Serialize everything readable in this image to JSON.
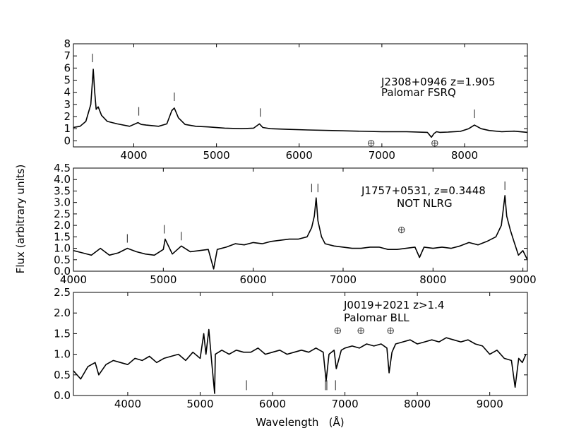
{
  "figure": {
    "ylabel": "Flux (arbitrary units)",
    "xlabel": "Wavelength   (Å)"
  },
  "chart_data": [
    {
      "type": "line",
      "series": [
        {
          "name": "J2308+0946",
          "x": [
            3270,
            3350,
            3420,
            3480,
            3510,
            3525,
            3545,
            3570,
            3610,
            3680,
            3800,
            3950,
            4050,
            4090,
            4150,
            4300,
            4400,
            4460,
            4490,
            4540,
            4620,
            4750,
            4900,
            5100,
            5300,
            5450,
            5520,
            5560,
            5650,
            5850,
            6100,
            6400,
            6700,
            7000,
            7300,
            7550,
            7600,
            7630,
            7660,
            7700,
            7800,
            7950,
            8050,
            8120,
            8200,
            8300,
            8450,
            8600,
            8760
          ],
          "y": [
            1.1,
            1.2,
            1.6,
            3.0,
            5.9,
            4.2,
            2.6,
            2.8,
            2.1,
            1.6,
            1.4,
            1.2,
            1.5,
            1.35,
            1.3,
            1.2,
            1.4,
            2.5,
            2.7,
            1.9,
            1.35,
            1.2,
            1.15,
            1.05,
            1.0,
            1.05,
            1.4,
            1.1,
            1.0,
            0.95,
            0.9,
            0.85,
            0.8,
            0.75,
            0.75,
            0.7,
            0.3,
            0.6,
            0.75,
            0.7,
            0.72,
            0.78,
            1.0,
            1.3,
            1.0,
            0.85,
            0.75,
            0.8,
            0.7
          ]
        }
      ],
      "line_markers_x": [
        3500,
        4060,
        4490,
        5530,
        8120
      ],
      "telluric_x": [
        6870,
        7640
      ],
      "annotations": [
        "J2308+0946 z=1.905",
        "Palomar FSRQ"
      ],
      "xlim": [
        3270,
        8760
      ],
      "ylim": [
        -0.5,
        8
      ],
      "x_ticks": [
        4000,
        5000,
        6000,
        7000,
        8000
      ],
      "y_ticks": [
        0,
        1,
        2,
        3,
        4,
        5,
        6,
        7,
        8
      ]
    },
    {
      "type": "line",
      "series": [
        {
          "name": "J1757+0531",
          "x": [
            4000,
            4100,
            4200,
            4300,
            4400,
            4500,
            4600,
            4700,
            4800,
            4900,
            5000,
            5020,
            5100,
            5200,
            5300,
            5400,
            5500,
            5560,
            5600,
            5700,
            5800,
            5900,
            6000,
            6100,
            6200,
            6300,
            6400,
            6500,
            6600,
            6650,
            6680,
            6700,
            6720,
            6760,
            6800,
            6900,
            7000,
            7100,
            7200,
            7300,
            7400,
            7500,
            7600,
            7700,
            7800,
            7850,
            7900,
            8000,
            8100,
            8200,
            8300,
            8400,
            8500,
            8600,
            8700,
            8760,
            8800,
            8820,
            8860,
            8900,
            8950,
            9000,
            9050
          ],
          "y": [
            0.9,
            0.8,
            0.7,
            1.0,
            0.7,
            0.8,
            1.0,
            0.85,
            0.75,
            0.7,
            0.95,
            1.4,
            0.75,
            1.1,
            0.85,
            0.9,
            0.95,
            0.1,
            0.95,
            1.05,
            1.2,
            1.15,
            1.25,
            1.2,
            1.3,
            1.35,
            1.4,
            1.4,
            1.5,
            1.9,
            2.4,
            3.2,
            2.2,
            1.5,
            1.2,
            1.1,
            1.05,
            1.0,
            1.0,
            1.05,
            1.05,
            0.95,
            0.95,
            1.0,
            1.05,
            0.6,
            1.05,
            1.0,
            1.05,
            1.0,
            1.1,
            1.25,
            1.15,
            1.3,
            1.5,
            2.0,
            3.3,
            2.4,
            1.8,
            1.3,
            0.7,
            0.9,
            0.5
          ]
        }
      ],
      "line_markers_x": [
        4600,
        5010,
        5200,
        6650,
        6720,
        8800
      ],
      "telluric_x": [
        7650
      ],
      "annotations": [
        "J1757+0531, z=0.3448",
        "NOT NLRG"
      ],
      "xlim": [
        4000,
        9050
      ],
      "ylim": [
        0,
        4.5
      ],
      "x_ticks": [
        4000,
        5000,
        6000,
        7000,
        8000,
        9000
      ],
      "y_ticks": [
        0.0,
        0.5,
        1.0,
        1.5,
        2.0,
        2.5,
        3.0,
        3.5,
        4.0,
        4.5
      ],
      "y_tick_labels": [
        "0.0",
        "0.5",
        "1.0",
        "1.5",
        "2.0",
        "2.5",
        "3.0",
        "3.5",
        "4.0",
        "4.5"
      ]
    },
    {
      "type": "line",
      "series": [
        {
          "name": "J0019+2021",
          "x": [
            3250,
            3350,
            3450,
            3550,
            3600,
            3700,
            3800,
            3900,
            4000,
            4100,
            4200,
            4300,
            4400,
            4500,
            4600,
            4700,
            4800,
            4900,
            5000,
            5050,
            5080,
            5120,
            5160,
            5200,
            5210,
            5300,
            5400,
            5500,
            5600,
            5700,
            5800,
            5900,
            6000,
            6100,
            6200,
            6300,
            6400,
            6500,
            6600,
            6700,
            6740,
            6780,
            6850,
            6880,
            6950,
            7000,
            7100,
            7200,
            7300,
            7400,
            7500,
            7580,
            7610,
            7650,
            7700,
            7800,
            7900,
            8000,
            8100,
            8200,
            8300,
            8400,
            8500,
            8600,
            8700,
            8800,
            8900,
            9000,
            9100,
            9200,
            9300,
            9350,
            9400,
            9450,
            9500
          ],
          "y": [
            0.6,
            0.4,
            0.7,
            0.8,
            0.5,
            0.75,
            0.85,
            0.8,
            0.75,
            0.9,
            0.85,
            0.95,
            0.8,
            0.9,
            0.95,
            1.0,
            0.85,
            1.05,
            0.9,
            1.5,
            1.0,
            1.6,
            0.8,
            0.05,
            1.0,
            1.1,
            1.0,
            1.1,
            1.05,
            1.05,
            1.15,
            1.0,
            1.05,
            1.1,
            1.0,
            1.05,
            1.1,
            1.05,
            1.15,
            1.05,
            0.35,
            1.0,
            1.1,
            0.65,
            1.1,
            1.15,
            1.2,
            1.15,
            1.25,
            1.2,
            1.25,
            1.15,
            0.55,
            1.05,
            1.25,
            1.3,
            1.35,
            1.25,
            1.3,
            1.35,
            1.3,
            1.4,
            1.35,
            1.3,
            1.35,
            1.25,
            1.2,
            1.0,
            1.1,
            0.9,
            0.85,
            0.2,
            0.9,
            0.8,
            1.0
          ]
        }
      ],
      "line_markers_x": [
        5640,
        6730,
        6750,
        6870
      ],
      "telluric_x": [
        6900,
        7220,
        7630
      ],
      "annotations": [
        "J0019+2021 z>1.4",
        "Palomar BLL"
      ],
      "xlim": [
        3250,
        9520
      ],
      "ylim": [
        0,
        2.5
      ],
      "x_ticks": [
        4000,
        5000,
        6000,
        7000,
        8000,
        9000
      ],
      "y_ticks": [
        0.0,
        0.5,
        1.0,
        1.5,
        2.0,
        2.5
      ],
      "y_tick_labels": [
        "0.0",
        "0.5",
        "1.0",
        "1.5",
        "2.0",
        "2.5"
      ]
    }
  ]
}
